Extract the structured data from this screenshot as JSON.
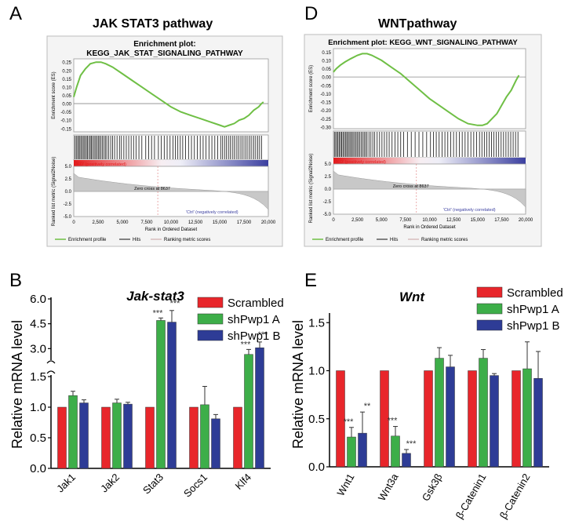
{
  "panels": {
    "a": {
      "letter": "A",
      "title": "JAK STAT3 pathway"
    },
    "d": {
      "letter": "D",
      "title": "WNTpathway"
    },
    "b": {
      "letter": "B"
    },
    "e": {
      "letter": "E"
    }
  },
  "colors": {
    "scrambled": "#e8262b",
    "shpwp1a": "#3dae49",
    "shpwp1b": "#2e3c96",
    "es_line": "#6fbf45",
    "gsea_red": "#e31a1c",
    "gsea_blue": "#3b3fa0"
  },
  "chart_data": [
    {
      "type": "line",
      "panel": "A",
      "title": "Enrichment plot:",
      "subtitle": "KEGG_JAK_STAT_SIGNALING_PATHWAY",
      "ylabel": "Enrichment score (ES)",
      "ylabel2": "Ranked list metric (Signal2Noise)",
      "xlabel": "Rank in Ordered Dataset",
      "yticks": [
        "0.25",
        "0.20",
        "0.15",
        "0.10",
        "0.05",
        "0.00",
        "-0.05",
        "-0.10",
        "-0.15"
      ],
      "ylim": [
        -0.17,
        0.27
      ],
      "metric_ticks": [
        "5.0",
        "2.5",
        "0.0",
        "-2.5",
        "-5.0"
      ],
      "xticks": [
        "0",
        "2,500",
        "5,000",
        "7,500",
        "10,000",
        "12,500",
        "15,000",
        "17,500",
        "20,000"
      ],
      "xlim": [
        0,
        20000
      ],
      "es_curve": {
        "x": [
          0,
          300,
          700,
          1200,
          1700,
          2300,
          2800,
          3300,
          4000,
          5000,
          6000,
          7000,
          8000,
          9000,
          10000,
          11000,
          12000,
          13000,
          14000,
          15000,
          15500,
          16000,
          16500,
          17000,
          17500,
          18000,
          18500,
          19000,
          19300,
          19500
        ],
        "y": [
          0.04,
          0.1,
          0.17,
          0.21,
          0.24,
          0.25,
          0.25,
          0.24,
          0.22,
          0.18,
          0.14,
          0.1,
          0.06,
          0.02,
          -0.02,
          -0.05,
          -0.07,
          -0.09,
          -0.11,
          -0.13,
          -0.14,
          -0.13,
          -0.12,
          -0.1,
          -0.09,
          -0.07,
          -0.04,
          -0.02,
          0.0,
          0.01
        ]
      },
      "hit_ranks": [
        120,
        260,
        390,
        520,
        640,
        780,
        900,
        1040,
        1150,
        1300,
        1420,
        1560,
        1700,
        1820,
        1950,
        2100,
        2240,
        2380,
        2520,
        2650,
        2800,
        2950,
        3100,
        3250,
        3400,
        3600,
        3800,
        4000,
        4200,
        4450,
        4700,
        4900,
        5150,
        5400,
        5650,
        5900,
        6150,
        6400,
        6700,
        7000,
        7400,
        7700,
        8000,
        8300,
        8700,
        9000,
        9300,
        9600,
        9900,
        10200,
        10450,
        10700,
        10950,
        11200,
        11500,
        11800,
        12100,
        12400,
        12700,
        13000,
        13300,
        13600,
        13900,
        14200,
        14500,
        14800,
        15100,
        15300,
        15500,
        15700,
        15900,
        16100,
        16300,
        16500,
        16700,
        16900,
        17100,
        17300,
        17500,
        17700,
        17900,
        18100,
        18300,
        18500,
        18700,
        18900,
        19100,
        19300
      ],
      "left_label": "'KO' (positively correlated)",
      "right_label": "'Ctrl' (negatively correlated)",
      "zero_cross": "Zero cross at 8637",
      "legend": [
        "Enrichment profile",
        "Hits",
        "Ranking metric scores"
      ]
    },
    {
      "type": "line",
      "panel": "D",
      "title": "Enrichment plot: KEGG_WNT_SIGNALING_PATHWAY",
      "ylabel": "Enrichment score (ES)",
      "ylabel2": "Ranked list metric (Signal2Noise)",
      "xlabel": "Rank in Ordered Dataset",
      "yticks": [
        "0.15",
        "0.10",
        "0.05",
        "0.00",
        "-0.05",
        "-0.10",
        "-0.15",
        "-0.20",
        "-0.25",
        "-0.30"
      ],
      "ylim": [
        -0.31,
        0.17
      ],
      "metric_ticks": [
        "5.0",
        "2.5",
        "0.0",
        "-2.5",
        "-5.0"
      ],
      "xticks": [
        "0",
        "2,500",
        "5,000",
        "7,500",
        "10,000",
        "12,500",
        "15,000",
        "17,500",
        "20,000"
      ],
      "xlim": [
        0,
        20000
      ],
      "es_curve": {
        "x": [
          0,
          300,
          700,
          1200,
          1800,
          2500,
          3000,
          3500,
          4000,
          5000,
          6000,
          7000,
          8000,
          9000,
          10000,
          11000,
          12000,
          13000,
          14000,
          15000,
          15500,
          16000,
          16500,
          17000,
          17500,
          18000,
          18500,
          19000,
          19300
        ],
        "y": [
          0.03,
          0.05,
          0.07,
          0.09,
          0.11,
          0.13,
          0.14,
          0.14,
          0.13,
          0.1,
          0.06,
          0.02,
          -0.03,
          -0.08,
          -0.13,
          -0.17,
          -0.21,
          -0.25,
          -0.28,
          -0.29,
          -0.29,
          -0.28,
          -0.25,
          -0.22,
          -0.17,
          -0.12,
          -0.08,
          -0.02,
          0.01
        ]
      },
      "hit_ranks": [
        100,
        230,
        360,
        480,
        610,
        740,
        860,
        990,
        1120,
        1250,
        1380,
        1500,
        1640,
        1780,
        1900,
        2040,
        2180,
        2320,
        2460,
        2600,
        2750,
        2900,
        3050,
        3200,
        3350,
        3500,
        3700,
        3900,
        4100,
        4300,
        4550,
        4800,
        5050,
        5300,
        5550,
        5800,
        6100,
        6400,
        6700,
        7000,
        7300,
        7700,
        8100,
        8500,
        8900,
        9300,
        9700,
        10100,
        10400,
        10700,
        11000,
        11300,
        11600,
        11900,
        12200,
        12500,
        12800,
        13100,
        13400,
        13700,
        14000,
        14300,
        14600,
        14900,
        15200,
        15450,
        15700,
        15950,
        16200,
        16450,
        16700,
        16950,
        17200,
        17450,
        17700,
        17950,
        18200,
        18450,
        18700,
        18950,
        19200
      ],
      "left_label": "'KO' (positively correlated)",
      "right_label": "'Ctrl' (negatively correlated)",
      "zero_cross": "Zero cross at 8637",
      "legend": [
        "Enrichment profile",
        "Hits",
        "Ranking metric scores"
      ]
    },
    {
      "type": "bar",
      "panel": "B",
      "title": "Jak-stat3",
      "ylabel": "Relative mRNA level",
      "categories": [
        "Jak1",
        "Jak2",
        "Stat3",
        "Socs1",
        "Klf4"
      ],
      "series": [
        {
          "name": "Scrambled",
          "values": [
            1.0,
            1.0,
            1.0,
            1.0,
            1.0
          ],
          "errors": [
            0,
            0,
            0,
            0,
            0
          ]
        },
        {
          "name": "shPwp1 A",
          "values": [
            1.19,
            1.07,
            4.7,
            1.04,
            2.65
          ],
          "errors": [
            0.07,
            0.06,
            0.15,
            0.3,
            0.3
          ]
        },
        {
          "name": "shPwp1 B",
          "values": [
            1.07,
            1.05,
            4.6,
            0.81,
            3.05
          ],
          "errors": [
            0.05,
            0.03,
            0.7,
            0.07,
            0.35
          ]
        }
      ],
      "yticks_lower": [
        0.0,
        0.5,
        1.0,
        1.5
      ],
      "yticks_upper": [
        3.0,
        4.5,
        6.0
      ],
      "ytick_labels_lower": [
        "0.0",
        "0.5",
        "1.0",
        "1.5"
      ],
      "ytick_labels_upper": [
        "3.0",
        "4.5",
        "6.0"
      ],
      "ylim_lower": [
        0,
        1.5
      ],
      "ylim_upper": [
        2.4,
        6.0
      ],
      "annotations": [
        {
          "category": "Stat3",
          "series": "shPwp1 A",
          "text": "***"
        },
        {
          "category": "Stat3",
          "series": "shPwp1 B",
          "text": "***"
        },
        {
          "category": "Klf4",
          "series": "shPwp1 A",
          "text": "***"
        },
        {
          "category": "Klf4",
          "series": "shPwp1 B",
          "text": "***"
        }
      ],
      "legend": [
        "Scrambled",
        "shPwp1 A",
        "shPwp1 B"
      ]
    },
    {
      "type": "bar",
      "panel": "E",
      "title": "Wnt",
      "ylabel": "Relative mRNA level",
      "categories": [
        "Wnt1",
        "Wnt3a",
        "Gsk3β",
        "β-Catenin1",
        "β-Catenin2"
      ],
      "series": [
        {
          "name": "Scrambled",
          "values": [
            1.0,
            1.0,
            1.0,
            1.0,
            1.0
          ],
          "errors": [
            0,
            0,
            0,
            0,
            0
          ]
        },
        {
          "name": "shPwp1 A",
          "values": [
            0.31,
            0.32,
            1.13,
            1.13,
            1.02
          ],
          "errors": [
            0.1,
            0.1,
            0.11,
            0.09,
            0.28
          ]
        },
        {
          "name": "shPwp1 B",
          "values": [
            0.35,
            0.14,
            1.04,
            0.95,
            0.92
          ],
          "errors": [
            0.22,
            0.04,
            0.12,
            0.02,
            0.28
          ]
        }
      ],
      "yticks": [
        "0.0",
        "0.5",
        "1.0",
        "1.5"
      ],
      "ylim": [
        0,
        1.6
      ],
      "annotations": [
        {
          "category": "Wnt1",
          "series": "shPwp1 A",
          "text": "***"
        },
        {
          "category": "Wnt1",
          "series": "shPwp1 B",
          "text": "**"
        },
        {
          "category": "Wnt3a",
          "series": "shPwp1 A",
          "text": "***"
        },
        {
          "category": "Wnt3a",
          "series": "shPwp1 B",
          "text": "***"
        }
      ],
      "legend": [
        "Scrambled",
        "shPwp1 A",
        "shPwp1 B"
      ]
    }
  ]
}
